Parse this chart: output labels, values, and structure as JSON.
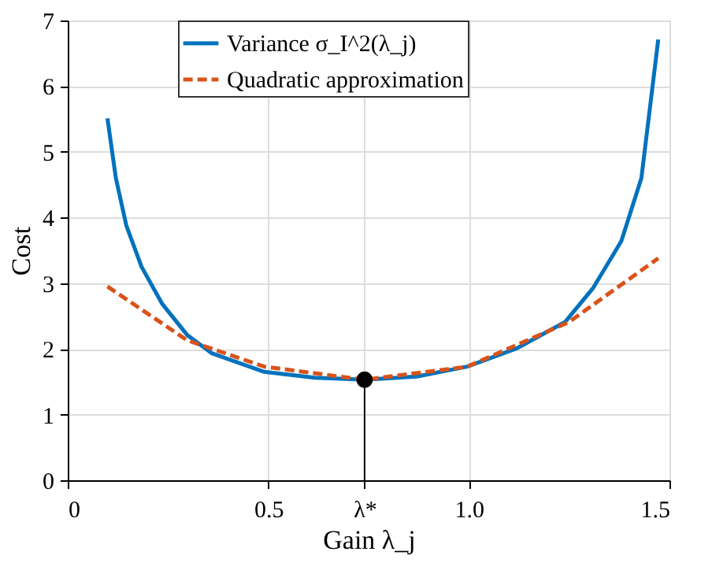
{
  "chart_data": {
    "type": "line",
    "xlabel": "Gain λ_j",
    "ylabel": "Cost",
    "xlim": [
      0,
      1.5
    ],
    "ylim": [
      0,
      7
    ],
    "xticks": [
      0,
      0.5,
      {
        "value": 0.74,
        "label": "λ*"
      },
      {
        "value": 1.0,
        "label": "1.0"
      },
      1.5
    ],
    "yticks": [
      0,
      1,
      2,
      3,
      4,
      5,
      6,
      7
    ],
    "grid": true,
    "legend": "top left",
    "series": [
      {
        "name": "Variance σ_I^2(λ_j)",
        "color": "#0072bd",
        "line_style": "solid",
        "x": [
          0.099,
          0.12,
          0.146,
          0.184,
          0.235,
          0.298,
          0.36,
          0.49,
          0.615,
          0.74,
          0.87,
          0.996,
          1.12,
          1.24,
          1.31,
          1.38,
          1.43,
          1.472
        ],
        "values": [
          5.51,
          4.6,
          3.88,
          3.25,
          2.69,
          2.21,
          1.93,
          1.65,
          1.56,
          1.53,
          1.58,
          1.73,
          2.01,
          2.41,
          2.93,
          3.64,
          4.6,
          6.71
        ]
      },
      {
        "name": "Quadratic approximation",
        "color": "#d95319",
        "line_style": "dashed",
        "x": [
          0.099,
          0.298,
          0.49,
          0.74,
          0.996,
          1.25,
          1.472
        ],
        "values": [
          2.95,
          2.13,
          1.73,
          1.53,
          1.73,
          2.41,
          3.38
        ]
      },
      {
        "type": "scatter",
        "color": "#000000",
        "marker": "circle",
        "x": [
          0.74
        ],
        "values": [
          1.53
        ]
      }
    ],
    "ref_lines": [
      {
        "axis": "x",
        "value": 0.74,
        "color": "#000000",
        "line_style": "solid"
      }
    ]
  }
}
